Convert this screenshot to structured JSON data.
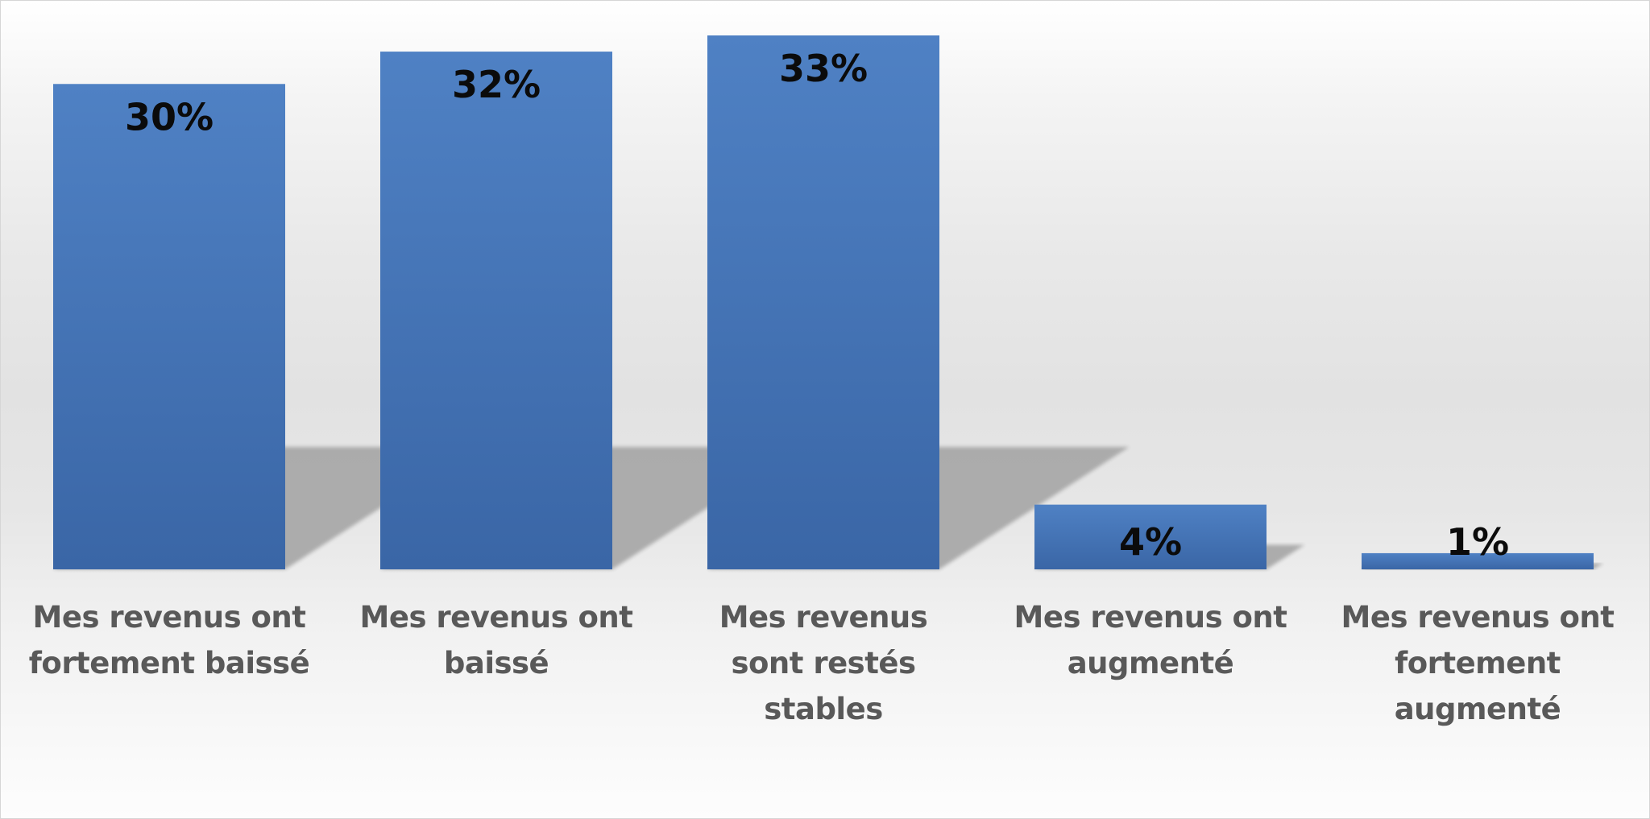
{
  "chart_data": {
    "type": "bar",
    "title": "",
    "xlabel": "",
    "ylabel": "",
    "categories": [
      "Mes revenus ont fortement baissé",
      "Mes revenus ont baissé",
      "Mes revenus sont restés stables",
      "Mes revenus ont augmenté",
      "Mes revenus ont fortement augmenté"
    ],
    "series": [
      {
        "values": [
          30,
          32,
          33,
          4,
          1
        ]
      }
    ],
    "data_labels": [
      "30%",
      "32%",
      "33%",
      "4%",
      "1%"
    ],
    "unit": "%",
    "ylim": [
      0,
      33
    ],
    "grid": false,
    "legend": "none",
    "bar_color_top": "#4f81c4",
    "bar_color_bottom": "#3a66a6",
    "shadow_color": "#a9a9a9"
  }
}
